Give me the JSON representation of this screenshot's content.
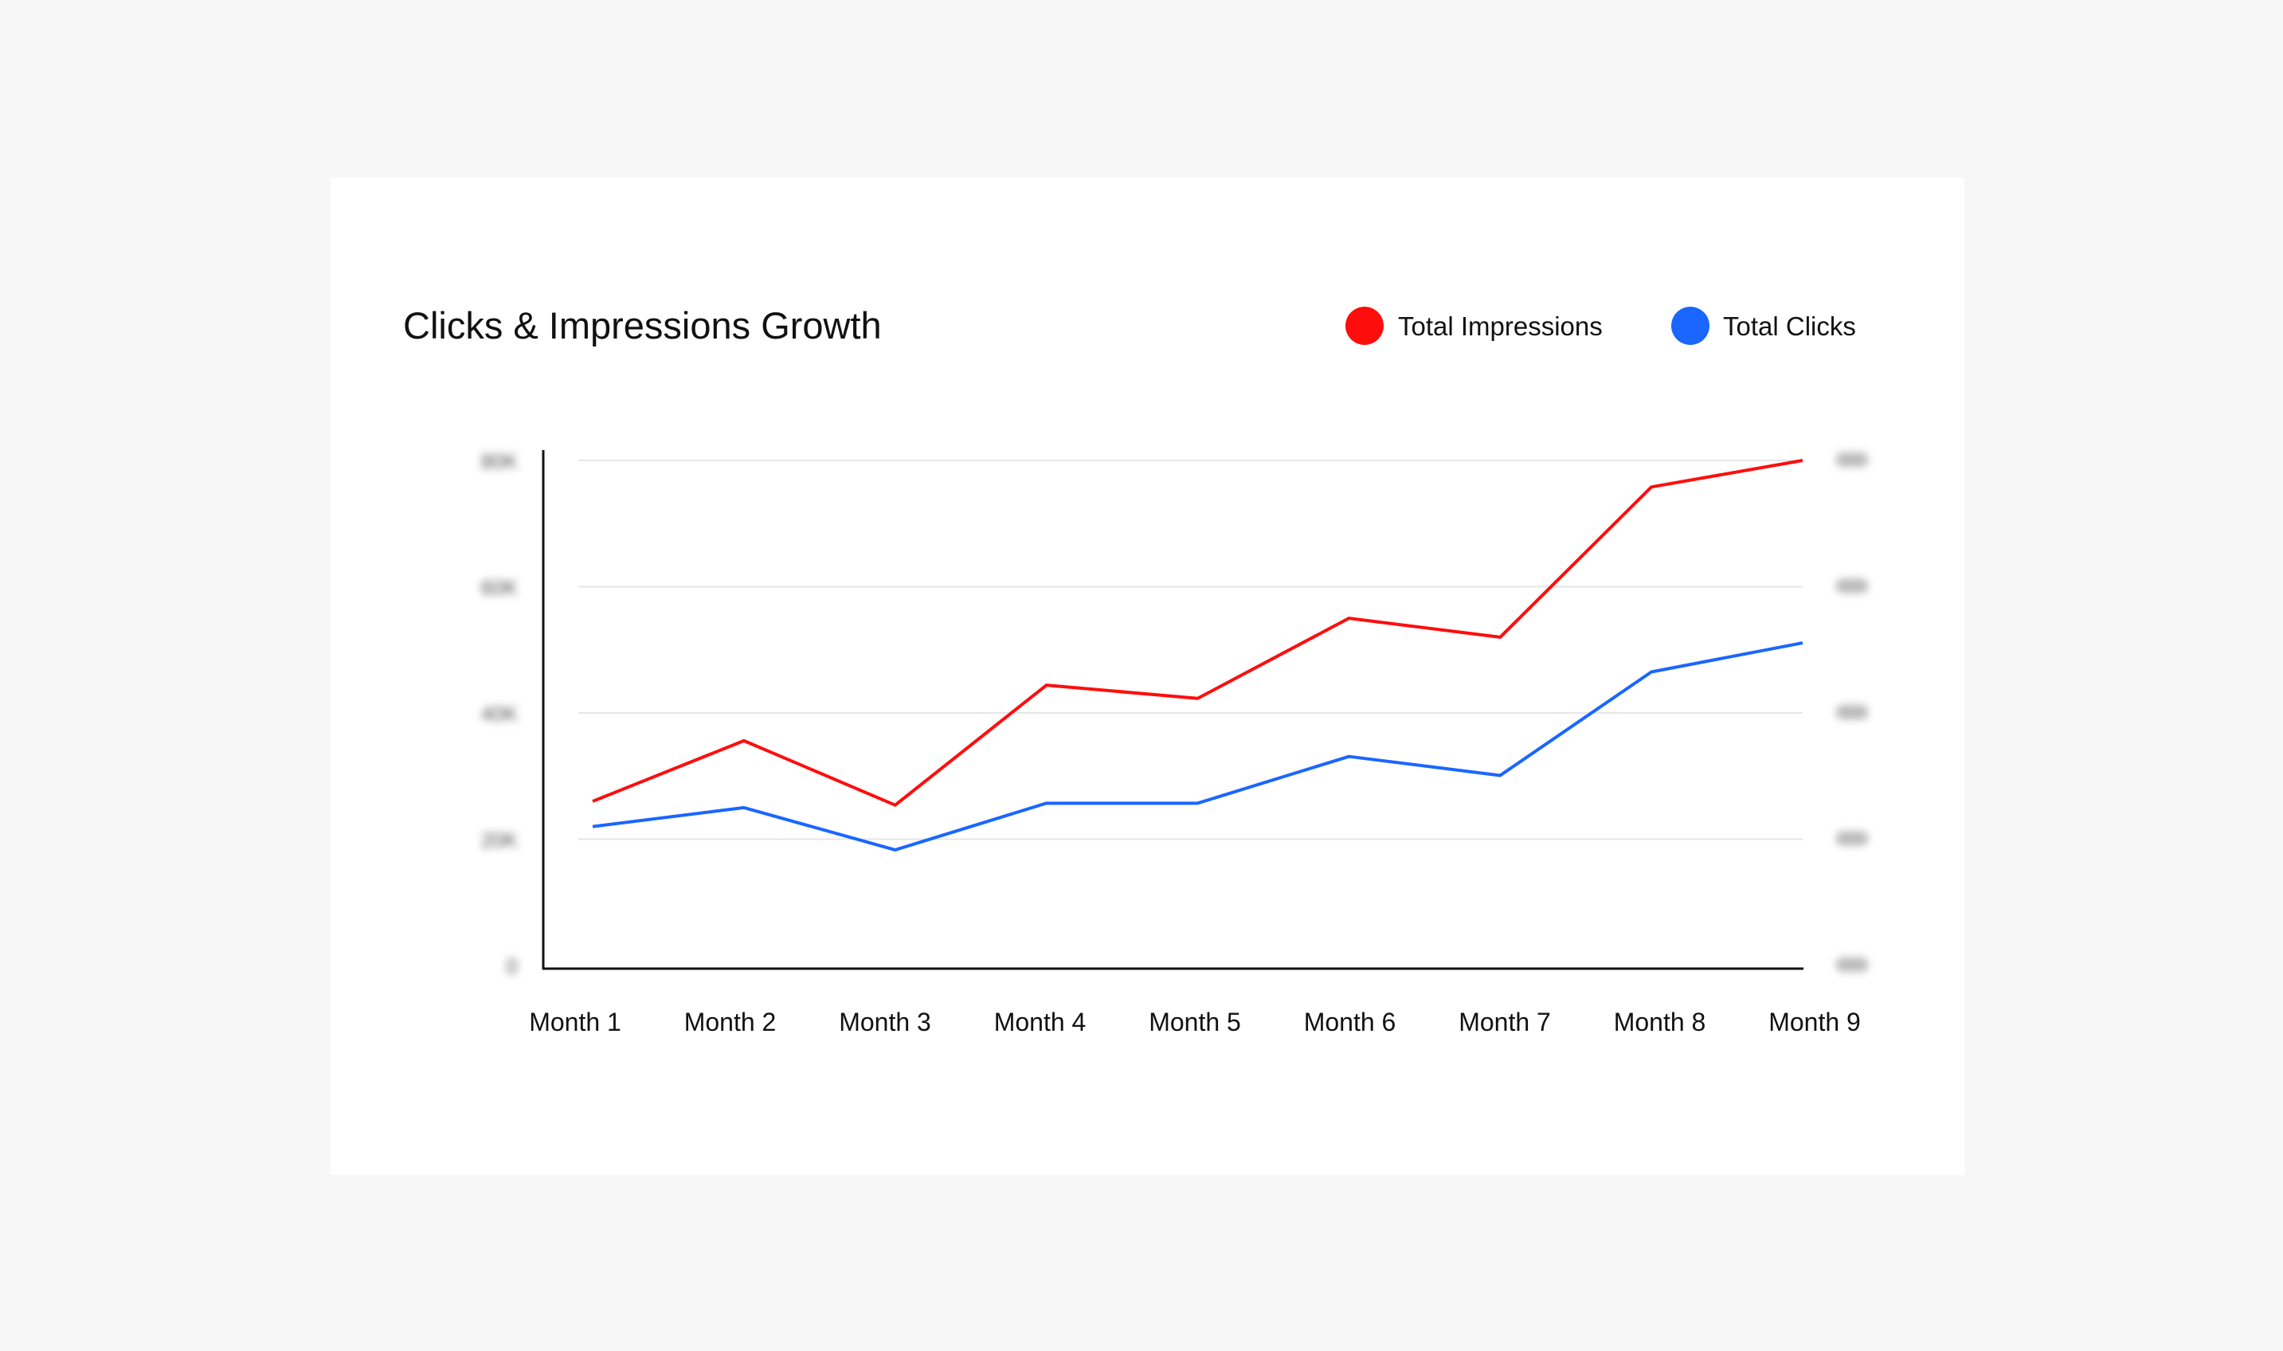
{
  "chart_data": {
    "type": "line",
    "title": "Clicks & Impressions Growth",
    "categories": [
      "Month 1",
      "Month 2",
      "Month 3",
      "Month 4",
      "Month 5",
      "Month 6",
      "Month 7",
      "Month 8",
      "Month 9"
    ],
    "series": [
      {
        "name": "Total Impressions",
        "color": "#ff0d0d",
        "axis": "left",
        "values": [
          26,
          35.6,
          25.4,
          44.4,
          42.3,
          55,
          52,
          75.8,
          80
        ]
      },
      {
        "name": "Total Clicks",
        "color": "#1a66ff",
        "axis": "right",
        "values": [
          22,
          25,
          18.3,
          25.7,
          25.7,
          33.1,
          30.1,
          46.5,
          51.1
        ]
      }
    ],
    "left_ticks": [
      "80K",
      "60K",
      "40K",
      "20K",
      "0"
    ],
    "left_ticks_blurred": true,
    "right_ticks_blurred": true,
    "ylim": [
      0,
      80
    ],
    "grid": true,
    "legend": "top-right"
  }
}
